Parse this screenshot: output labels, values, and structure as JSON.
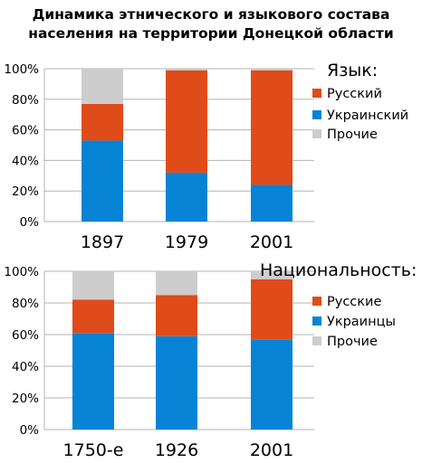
{
  "title_lines": [
    "Динамика этнического и языкового состава",
    "населения на территории Донецкой области"
  ],
  "colors": {
    "russian": "#e04b1a",
    "ukrainian": "#0683d4",
    "other": "#cdcdcd",
    "grid": "#b3b3b3"
  },
  "chart_data": [
    {
      "type": "bar",
      "stacked": true,
      "heading": "Язык:",
      "categories": [
        "1897",
        "1979",
        "2001"
      ],
      "series": [
        {
          "name": "Украинский",
          "key": "ukrainian",
          "values": [
            53,
            32,
            24
          ]
        },
        {
          "name": "Русский",
          "key": "russian",
          "values": [
            24,
            67,
            75
          ]
        },
        {
          "name": "Прочие",
          "key": "other",
          "values": [
            23,
            1,
            1
          ]
        }
      ],
      "legend_order": [
        "Русский",
        "Украинский",
        "Прочие"
      ],
      "legend_position": "right",
      "yticks": [
        "0%",
        "20%",
        "40%",
        "60%",
        "80%",
        "100%"
      ],
      "ylim": [
        0,
        100
      ],
      "grid": true
    },
    {
      "type": "bar",
      "stacked": true,
      "heading": "Национальность:",
      "categories": [
        "1750-е",
        "1926",
        "2001"
      ],
      "series": [
        {
          "name": "Украинцы",
          "key": "ukrainian",
          "values": [
            61,
            59,
            57
          ]
        },
        {
          "name": "Русские",
          "key": "russian",
          "values": [
            21,
            26,
            38
          ]
        },
        {
          "name": "Прочие",
          "key": "other",
          "values": [
            18,
            15,
            5
          ]
        }
      ],
      "legend_order": [
        "Русские",
        "Украинцы",
        "Прочие"
      ],
      "legend_position": "right",
      "yticks": [
        "0%",
        "20%",
        "40%",
        "60%",
        "80%",
        "100%"
      ],
      "ylim": [
        0,
        100
      ],
      "grid": true
    }
  ]
}
